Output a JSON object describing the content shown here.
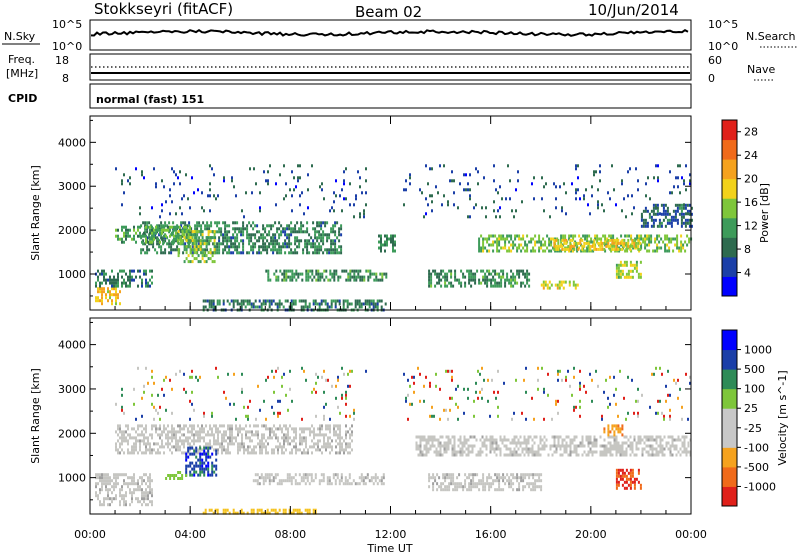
{
  "header": {
    "station": "Stokkseyri (fitACF)",
    "beam": "Beam 02",
    "date": "10/Jun/2014"
  },
  "noise_panel": {
    "label_left": "N.Sky",
    "label_right": "N.Search",
    "left_ticks": [
      "10^5",
      "10^0"
    ],
    "right_ticks": [
      "10^5",
      "10^0"
    ]
  },
  "freq_panel": {
    "label_left_1": "Freq.",
    "label_left_2": "[MHz]",
    "label_right": "Nave",
    "left_ticks": [
      "18",
      "8"
    ],
    "right_ticks": [
      "60",
      "0"
    ]
  },
  "cpid_panel": {
    "label": "CPID",
    "mode": "normal (fast) 151"
  },
  "colors": {
    "power_scale": [
      "#0000ff",
      "#1b3fa8",
      "#2e6b4f",
      "#3d9b5a",
      "#7ec63a",
      "#f2d21b",
      "#f5a21e",
      "#f06a1a",
      "#e0201a"
    ],
    "velocity_scale": [
      "#e0201a",
      "#f06a1a",
      "#f5a21e",
      "#c8c8c8",
      "#c8c8c8",
      "#7ec63a",
      "#2e8b57",
      "#1b3fa8",
      "#0000ff"
    ],
    "ground_scatter": "#c0c0c0"
  },
  "chart_data": [
    {
      "type": "heatmap",
      "panel": "power",
      "ylabel": "Slant Range [km]",
      "xlabel": "",
      "x_ticks": [
        "00:00",
        "04:00",
        "08:00",
        "12:00",
        "16:00",
        "20:00",
        "00:00"
      ],
      "y_ticks": [
        "1000",
        "2000",
        "3000",
        "4000"
      ],
      "ylim": [
        180,
        4600
      ],
      "xlim_hours": [
        0,
        24
      ],
      "colorbar_label": "Power [dB]",
      "colorbar_ticks": [
        "4",
        "8",
        "12",
        "16",
        "20",
        "24",
        "28"
      ],
      "colorbar_range": [
        0,
        30
      ],
      "regions": [
        {
          "t0": 2.0,
          "t1": 10.0,
          "r0": 1500,
          "r1": 2200,
          "level": 9
        },
        {
          "t0": 1.0,
          "t1": 4.0,
          "r0": 1700,
          "r1": 2100,
          "level": 12
        },
        {
          "t0": 3.5,
          "t1": 5.0,
          "r0": 1300,
          "r1": 2000,
          "level": 14
        },
        {
          "t0": 0.2,
          "t1": 1.2,
          "r0": 300,
          "r1": 700,
          "level": 20
        },
        {
          "t0": 0.2,
          "t1": 2.5,
          "r0": 700,
          "r1": 1100,
          "level": 8
        },
        {
          "t0": 7.0,
          "t1": 11.8,
          "r0": 850,
          "r1": 1100,
          "level": 10
        },
        {
          "t0": 4.5,
          "t1": 11.8,
          "r0": 200,
          "r1": 420,
          "level": 8
        },
        {
          "t0": 11.5,
          "t1": 12.2,
          "r0": 1500,
          "r1": 1900,
          "level": 9
        },
        {
          "t0": 13.5,
          "t1": 17.5,
          "r0": 700,
          "r1": 1100,
          "level": 10
        },
        {
          "t0": 15.5,
          "t1": 24.0,
          "r0": 1500,
          "r1": 1900,
          "level": 14
        },
        {
          "t0": 18.5,
          "t1": 22.0,
          "r0": 1550,
          "r1": 1800,
          "level": 19
        },
        {
          "t0": 18.0,
          "t1": 19.5,
          "r0": 650,
          "r1": 850,
          "level": 17
        },
        {
          "t0": 21.0,
          "t1": 22.0,
          "r0": 900,
          "r1": 1300,
          "level": 16
        },
        {
          "t0": 22.0,
          "t1": 24.0,
          "r0": 2100,
          "r1": 2600,
          "level": 6
        },
        {
          "t0": 1.0,
          "t1": 11.0,
          "r0": 2300,
          "r1": 3500,
          "level": 5,
          "sparse": true
        },
        {
          "t0": 12.5,
          "t1": 24.0,
          "r0": 2300,
          "r1": 3500,
          "level": 5,
          "sparse": true
        }
      ]
    },
    {
      "type": "heatmap",
      "panel": "velocity",
      "ylabel": "Slant Range [km]",
      "xlabel": "Time UT",
      "x_ticks": [
        "00:00",
        "04:00",
        "08:00",
        "12:00",
        "16:00",
        "20:00",
        "00:00"
      ],
      "y_ticks": [
        "1000",
        "2000",
        "3000",
        "4000"
      ],
      "ylim": [
        180,
        4600
      ],
      "xlim_hours": [
        0,
        24
      ],
      "colorbar_label": "Velocity [m s^-1]",
      "colorbar_ticks": [
        "1000",
        "500",
        "100",
        "25",
        "-25",
        "-100",
        "-500",
        "-1000"
      ],
      "regions": [
        {
          "t0": 1.0,
          "t1": 10.5,
          "r0": 1550,
          "r1": 2200,
          "class": "gs"
        },
        {
          "t0": 0.2,
          "t1": 2.5,
          "r0": 400,
          "r1": 1100,
          "class": "gs"
        },
        {
          "t0": 6.5,
          "t1": 11.8,
          "r0": 850,
          "r1": 1100,
          "class": "gs"
        },
        {
          "t0": 13.0,
          "t1": 24.0,
          "r0": 1500,
          "r1": 1950,
          "class": "gs"
        },
        {
          "t0": 13.5,
          "t1": 18.0,
          "r0": 700,
          "r1": 1100,
          "class": "gs"
        },
        {
          "t0": 3.8,
          "t1": 5.0,
          "r0": 1050,
          "r1": 1700,
          "class": "v_pos_high"
        },
        {
          "t0": 3.0,
          "t1": 3.8,
          "r0": 950,
          "r1": 1150,
          "class": "v_pos_low"
        },
        {
          "t0": 20.5,
          "t1": 21.3,
          "r0": 1950,
          "r1": 2200,
          "class": "v_neg_mid"
        },
        {
          "t0": 21.0,
          "t1": 22.0,
          "r0": 750,
          "r1": 1200,
          "class": "v_neg_high"
        },
        {
          "t0": 4.5,
          "t1": 9.0,
          "r0": 200,
          "r1": 300,
          "class": "v_neg_low"
        },
        {
          "t0": 1.0,
          "t1": 11.0,
          "r0": 2300,
          "r1": 3500,
          "class": "mixed",
          "sparse": true
        },
        {
          "t0": 12.5,
          "t1": 24.0,
          "r0": 2300,
          "r1": 3500,
          "class": "mixed",
          "sparse": true
        }
      ]
    }
  ]
}
